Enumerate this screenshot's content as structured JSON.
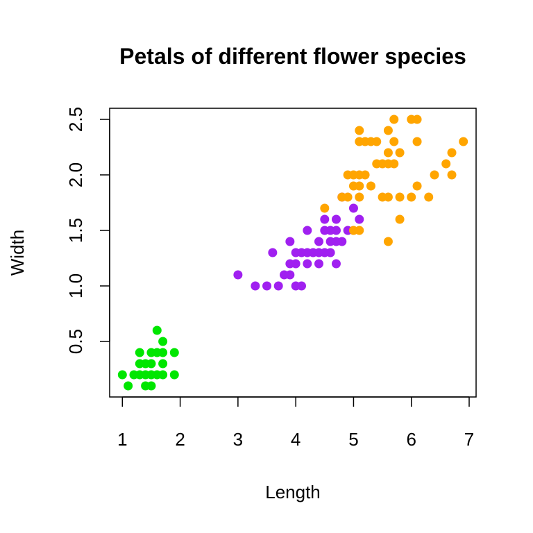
{
  "chart_data": {
    "type": "scatter",
    "title": "Petals of different flower species",
    "xlabel": "Length",
    "ylabel": "Width",
    "xlim": [
      0.78,
      7.12
    ],
    "ylim": [
      0.0,
      2.6
    ],
    "xticks": [
      "1",
      "2",
      "3",
      "4",
      "5",
      "6",
      "7"
    ],
    "yticks": [
      "0.5",
      "1.0",
      "1.5",
      "2.0",
      "2.5"
    ],
    "grid": false,
    "legend": "none",
    "series": [
      {
        "color": "#00e600",
        "points": [
          [
            1.0,
            0.2
          ],
          [
            1.1,
            0.1
          ],
          [
            1.2,
            0.2
          ],
          [
            1.3,
            0.2
          ],
          [
            1.3,
            0.3
          ],
          [
            1.3,
            0.4
          ],
          [
            1.4,
            0.1
          ],
          [
            1.4,
            0.2
          ],
          [
            1.4,
            0.3
          ],
          [
            1.5,
            0.1
          ],
          [
            1.5,
            0.2
          ],
          [
            1.5,
            0.3
          ],
          [
            1.5,
            0.4
          ],
          [
            1.6,
            0.2
          ],
          [
            1.6,
            0.4
          ],
          [
            1.6,
            0.6
          ],
          [
            1.7,
            0.2
          ],
          [
            1.7,
            0.3
          ],
          [
            1.7,
            0.4
          ],
          [
            1.7,
            0.5
          ],
          [
            1.9,
            0.2
          ],
          [
            1.9,
            0.4
          ]
        ]
      },
      {
        "color": "#a020f0",
        "points": [
          [
            3.0,
            1.1
          ],
          [
            3.3,
            1.0
          ],
          [
            3.5,
            1.0
          ],
          [
            3.6,
            1.3
          ],
          [
            3.7,
            1.0
          ],
          [
            3.8,
            1.1
          ],
          [
            3.9,
            1.1
          ],
          [
            3.9,
            1.2
          ],
          [
            3.9,
            1.4
          ],
          [
            4.0,
            1.0
          ],
          [
            4.0,
            1.2
          ],
          [
            4.0,
            1.3
          ],
          [
            4.1,
            1.0
          ],
          [
            4.1,
            1.3
          ],
          [
            4.2,
            1.2
          ],
          [
            4.2,
            1.3
          ],
          [
            4.2,
            1.5
          ],
          [
            4.3,
            1.3
          ],
          [
            4.4,
            1.2
          ],
          [
            4.4,
            1.3
          ],
          [
            4.4,
            1.4
          ],
          [
            4.5,
            1.3
          ],
          [
            4.5,
            1.5
          ],
          [
            4.5,
            1.6
          ],
          [
            4.6,
            1.3
          ],
          [
            4.6,
            1.4
          ],
          [
            4.6,
            1.5
          ],
          [
            4.7,
            1.2
          ],
          [
            4.7,
            1.4
          ],
          [
            4.7,
            1.5
          ],
          [
            4.7,
            1.6
          ],
          [
            4.8,
            1.4
          ],
          [
            4.8,
            1.8
          ],
          [
            4.9,
            1.5
          ],
          [
            5.0,
            1.7
          ],
          [
            5.1,
            1.6
          ]
        ]
      },
      {
        "color": "#ffa500",
        "points": [
          [
            4.5,
            1.7
          ],
          [
            4.8,
            1.8
          ],
          [
            4.9,
            1.8
          ],
          [
            4.9,
            2.0
          ],
          [
            5.0,
            1.5
          ],
          [
            5.0,
            1.9
          ],
          [
            5.0,
            2.0
          ],
          [
            5.1,
            1.5
          ],
          [
            5.1,
            1.8
          ],
          [
            5.1,
            1.9
          ],
          [
            5.1,
            2.0
          ],
          [
            5.1,
            2.3
          ],
          [
            5.1,
            2.4
          ],
          [
            5.2,
            2.0
          ],
          [
            5.2,
            2.3
          ],
          [
            5.3,
            1.9
          ],
          [
            5.3,
            2.3
          ],
          [
            5.4,
            2.1
          ],
          [
            5.4,
            2.3
          ],
          [
            5.5,
            1.8
          ],
          [
            5.5,
            2.1
          ],
          [
            5.6,
            1.4
          ],
          [
            5.6,
            1.8
          ],
          [
            5.6,
            2.1
          ],
          [
            5.6,
            2.2
          ],
          [
            5.6,
            2.4
          ],
          [
            5.7,
            2.1
          ],
          [
            5.7,
            2.3
          ],
          [
            5.7,
            2.5
          ],
          [
            5.8,
            1.6
          ],
          [
            5.8,
            1.8
          ],
          [
            5.8,
            2.2
          ],
          [
            6.0,
            1.8
          ],
          [
            6.0,
            2.5
          ],
          [
            6.1,
            1.9
          ],
          [
            6.1,
            2.3
          ],
          [
            6.1,
            2.5
          ],
          [
            6.3,
            1.8
          ],
          [
            6.4,
            2.0
          ],
          [
            6.6,
            2.1
          ],
          [
            6.7,
            2.0
          ],
          [
            6.7,
            2.2
          ],
          [
            6.9,
            2.3
          ]
        ]
      }
    ]
  }
}
